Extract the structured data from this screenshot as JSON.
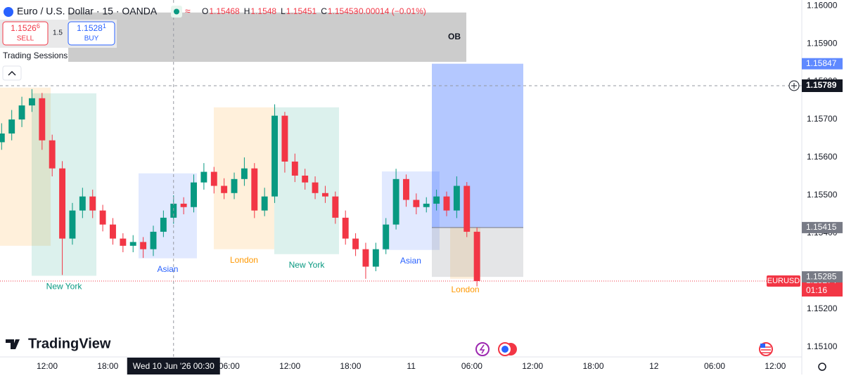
{
  "header": {
    "symbol": "Euro / U.S. Dollar · 15 · OANDA",
    "ohlc": [
      {
        "key": "O",
        "value": 1.15468
      },
      {
        "key": "H",
        "value": 1.1548
      },
      {
        "key": "L",
        "value": 1.15451
      },
      {
        "key": "C",
        "value": 1.15453
      }
    ],
    "change": "−0.00014 (−0.01%)"
  },
  "order_panel": {
    "sell_price": "1.15266",
    "sell": "SELL",
    "spread": 1.5,
    "buy_price": "1.15281",
    "buy": "BUY"
  },
  "indicator": "Trading Sessions",
  "brand": "TradingView",
  "chart_data": {
    "type": "candlestick",
    "up_color": "#089981",
    "down_color": "#f23645",
    "grid": false,
    "x": [
      -4.5,
      -3.5,
      -2.5,
      -1.5,
      -0.5,
      0.5,
      1.5,
      2.5,
      3.5,
      4.5,
      5.5,
      6.5,
      7.5,
      8.5,
      9.5,
      10.5,
      11.5,
      12.5,
      13.5,
      14.5,
      15.5,
      16.5,
      17.5,
      18.5,
      19.5,
      20.5,
      21.5,
      22.5,
      23.5,
      24.5,
      25.5,
      26.5,
      27.5,
      28.5,
      29.5,
      30.5,
      31.5,
      32.5,
      33.5,
      34.5,
      35.5,
      36.5,
      37.5,
      38.5,
      39.5,
      40.5,
      41.5,
      42.5
    ],
    "open": [
      1.1564,
      1.15663,
      1.157,
      1.15737,
      1.15756,
      1.15645,
      1.15571,
      1.15386,
      1.1546,
      1.15497,
      1.1546,
      1.15423,
      1.15386,
      1.15367,
      1.15377,
      1.15358,
      1.15404,
      1.15441,
      1.15478,
      1.15469,
      1.15534,
      1.15562,
      1.15525,
      1.15506,
      1.15543,
      1.15571,
      1.1546,
      1.15497,
      1.1571,
      1.15589,
      1.15552,
      1.15534,
      1.15506,
      1.15497,
      1.15441,
      1.15386,
      1.15358,
      1.15312,
      1.15358,
      1.15423,
      1.15543,
      1.15488,
      1.15469,
      1.15478,
      1.15497,
      1.1546,
      1.15525,
      1.15404
    ],
    "high": [
      1.1569,
      1.15725,
      1.1576,
      1.1578,
      1.1577,
      1.1566,
      1.1559,
      1.1548,
      1.1552,
      1.15515,
      1.15475,
      1.1544,
      1.154,
      1.15395,
      1.1539,
      1.1542,
      1.1546,
      1.155,
      1.15495,
      1.15555,
      1.15585,
      1.15575,
      1.15545,
      1.1556,
      1.156,
      1.15585,
      1.1552,
      1.1574,
      1.1572,
      1.1561,
      1.1557,
      1.1555,
      1.15525,
      1.1551,
      1.1546,
      1.154,
      1.15375,
      1.15375,
      1.1544,
      1.1557,
      1.15555,
      1.15505,
      1.15495,
      1.15515,
      1.1551,
      1.1555,
      1.15535,
      1.15415
    ],
    "low": [
      1.1562,
      1.15645,
      1.1568,
      1.1572,
      1.1562,
      1.1555,
      1.1529,
      1.1537,
      1.1544,
      1.1544,
      1.15405,
      1.1537,
      1.1535,
      1.1535,
      1.15335,
      1.1534,
      1.1539,
      1.15425,
      1.1545,
      1.15455,
      1.15515,
      1.15505,
      1.1549,
      1.1549,
      1.15525,
      1.1544,
      1.15445,
      1.1548,
      1.1556,
      1.15535,
      1.15515,
      1.1549,
      1.1548,
      1.15425,
      1.1537,
      1.1534,
      1.1528,
      1.153,
      1.15345,
      1.1541,
      1.1547,
      1.1545,
      1.15455,
      1.1546,
      1.15445,
      1.1544,
      1.1539,
      1.1526
    ],
    "close": [
      1.15663,
      1.157,
      1.15737,
      1.15756,
      1.15645,
      1.15571,
      1.15386,
      1.1546,
      1.15497,
      1.1546,
      1.15423,
      1.15386,
      1.15367,
      1.15377,
      1.15358,
      1.15404,
      1.15441,
      1.15478,
      1.15469,
      1.15534,
      1.15562,
      1.15525,
      1.15506,
      1.15543,
      1.15571,
      1.1546,
      1.15497,
      1.1571,
      1.15589,
      1.15552,
      1.15534,
      1.15506,
      1.15497,
      1.15441,
      1.15386,
      1.15358,
      1.15312,
      1.15358,
      1.15423,
      1.15543,
      1.15488,
      1.15469,
      1.15478,
      1.15497,
      1.1546,
      1.15525,
      1.15404,
      1.15274
    ],
    "xlim": [
      -4.66,
      74.62
    ],
    "xticks": [
      {
        "value": 0,
        "label": "12:00"
      },
      {
        "value": 6,
        "label": "18:00"
      },
      {
        "value": 18,
        "label": "06:00"
      },
      {
        "value": 24,
        "label": "12:00"
      },
      {
        "value": 30,
        "label": "18:00"
      },
      {
        "value": 36,
        "label": "11"
      },
      {
        "value": 42,
        "label": "06:00"
      },
      {
        "value": 48,
        "label": "12:00"
      },
      {
        "value": 54,
        "label": "18:00"
      },
      {
        "value": 60,
        "label": "12"
      },
      {
        "value": 66,
        "label": "06:00"
      },
      {
        "value": 72,
        "label": "12:00"
      }
    ],
    "ylim": [
      1.15074,
      1.16015
    ],
    "yticks": [
      {
        "value": 1.16,
        "label": "1.16000"
      },
      {
        "value": 1.159,
        "label": "1.15900"
      },
      {
        "value": 1.158,
        "label": "1.15800"
      },
      {
        "value": 1.157,
        "label": "1.15700"
      },
      {
        "value": 1.156,
        "label": "1.15600"
      },
      {
        "value": 1.155,
        "label": "1.15500"
      },
      {
        "value": 1.154,
        "label": "1.15400"
      },
      {
        "value": 1.152,
        "label": "1.15200"
      },
      {
        "value": 1.151,
        "label": "1.15100"
      }
    ],
    "sessions": [
      {
        "x": [
          -4.66,
          0.35
        ],
        "price": [
          1.15367,
          1.15784
        ],
        "color": "#ff9800"
      },
      {
        "label": "New York",
        "x": [
          -1.53,
          4.87
        ],
        "price": [
          1.15288,
          1.15769
        ],
        "color": "#089981"
      },
      {
        "label": "Asian",
        "x": [
          9.04,
          14.81
        ],
        "price": [
          1.15334,
          1.15558
        ],
        "color": "#2962ff"
      },
      {
        "label": "London",
        "x": [
          16.48,
          22.46
        ],
        "price": [
          1.15358,
          1.15732
        ],
        "color": "#ff9800"
      },
      {
        "label": "New York",
        "x": [
          22.46,
          28.86
        ],
        "price": [
          1.15345,
          1.15732
        ],
        "color": "#089981"
      },
      {
        "label": "Asian",
        "x": [
          33.1,
          38.8
        ],
        "price": [
          1.15356,
          1.15563
        ],
        "color": "#2962ff"
      },
      {
        "label": "London",
        "x": [
          39.85,
          42.84
        ],
        "price": [
          1.1528,
          1.15417
        ],
        "color": "#ff9800"
      }
    ],
    "order_block": {
      "label": "OB",
      "x": [
        2.09,
        41.45
      ],
      "price": [
        1.15852,
        1.15982
      ],
      "color": "#cccccc"
    },
    "position": {
      "x": [
        38.04,
        47.08
      ],
      "target": 1.15847,
      "entry": 1.15415,
      "stop": 1.15285,
      "target_color": "#2962ff",
      "stop_color": "#787b86"
    },
    "crosshair": {
      "x": 12.5,
      "price": 1.15789,
      "date": "Wed 10 Jun '26",
      "time": "00:30"
    },
    "last_price": {
      "symbol": "EURUSD",
      "value": 1.15274,
      "countdown": "01:16",
      "color": "#f23645"
    }
  }
}
